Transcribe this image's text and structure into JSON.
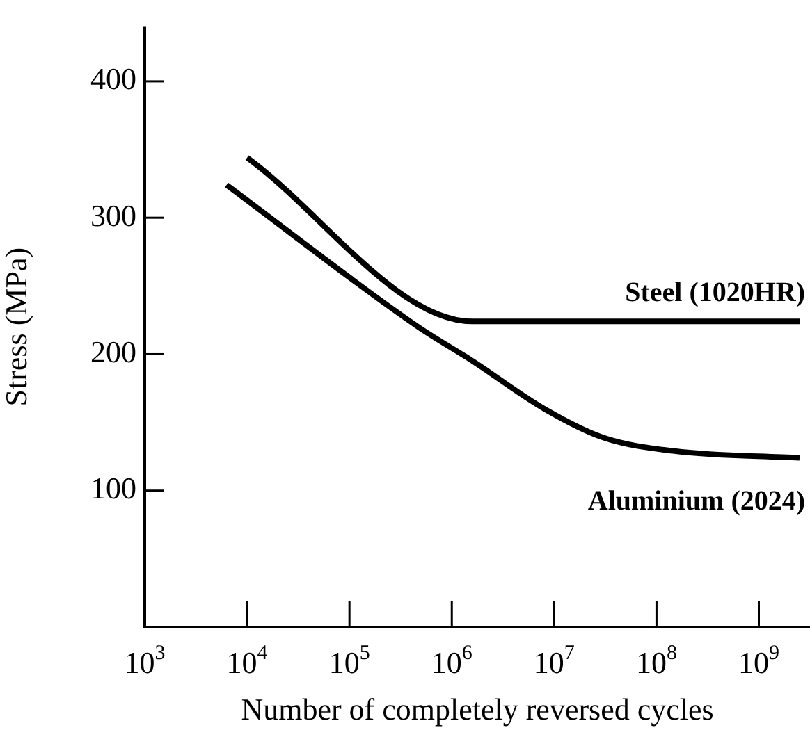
{
  "chart_data": {
    "type": "line",
    "xlabel": "Number of completely reversed cycles",
    "ylabel": "Stress (MPa)",
    "log": "x",
    "xlim": [
      1000,
      3160000000
    ],
    "ylim": [
      0,
      440
    ],
    "xticks": [
      {
        "value": 1000,
        "label": "10$^{3}$"
      },
      {
        "value": 10000,
        "label": "10$^{4}$"
      },
      {
        "value": 100000,
        "label": "10$^{5}$"
      },
      {
        "value": 1000000,
        "label": "10$^{6}$"
      },
      {
        "value": 10000000,
        "label": "10$^{7}$"
      },
      {
        "value": 100000000,
        "label": "10$^{8}$"
      },
      {
        "value": 1000000000,
        "label": "10$^{9}$"
      }
    ],
    "yticks": [
      100,
      200,
      300,
      400
    ],
    "grid": false,
    "legend": false,
    "marker": "none",
    "line_style": "solid",
    "series": [
      {
        "name": "Steel (1020HR)",
        "color": "#000000",
        "x": [
          10000,
          1600000,
          2500000000
        ],
        "values": [
          344,
          224,
          224
        ]
      },
      {
        "name": "Aluminium (2024)",
        "color": "#000000",
        "x": [
          6300,
          470000,
          1600000,
          8000000,
          30000000,
          150000000,
          2500000000
        ],
        "values": [
          324,
          220,
          195,
          160,
          139,
          129,
          124
        ]
      }
    ]
  }
}
